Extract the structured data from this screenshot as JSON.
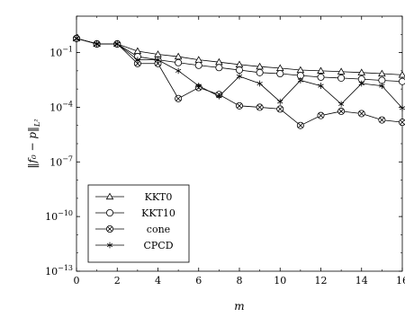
{
  "chart_data": {
    "type": "line",
    "title": "",
    "xlabel": "m",
    "ylabel": "‖f₀ − p‖",
    "ylabel_subscript": "L²",
    "y_scale": "log",
    "xlim": [
      0,
      16
    ],
    "ylim": [
      1e-13,
      10
    ],
    "x_ticks": [
      0,
      2,
      4,
      6,
      8,
      10,
      12,
      14,
      16
    ],
    "x_tick_labels": [
      "0",
      "2",
      "4",
      "6",
      "8",
      "10",
      "12",
      "14",
      "16"
    ],
    "y_ticks": [
      1e-13,
      1e-10,
      1e-07,
      0.0001,
      0.1
    ],
    "y_tick_labels": [
      {
        "base": "10",
        "exp": "−13"
      },
      {
        "base": "10",
        "exp": "−10"
      },
      {
        "base": "10",
        "exp": "−7"
      },
      {
        "base": "10",
        "exp": "−4"
      },
      {
        "base": "10",
        "exp": "−1"
      }
    ],
    "grid": false,
    "legend_position": "bottom-left",
    "x": [
      0,
      1,
      2,
      3,
      4,
      5,
      6,
      7,
      8,
      9,
      10,
      11,
      12,
      13,
      14,
      15,
      16
    ],
    "series": [
      {
        "name": "KKT0",
        "marker": "triangle",
        "values": [
          0.6,
          0.3,
          0.3,
          0.12,
          0.08,
          0.06,
          0.04,
          0.03,
          0.022,
          0.017,
          0.014,
          0.011,
          0.01,
          0.009,
          0.008,
          0.007,
          0.006
        ]
      },
      {
        "name": "KKT10",
        "marker": "circle",
        "values": [
          0.6,
          0.3,
          0.3,
          0.06,
          0.04,
          0.028,
          0.02,
          0.015,
          0.011,
          0.008,
          0.007,
          0.0055,
          0.0045,
          0.004,
          0.0035,
          0.003,
          0.0026
        ]
      },
      {
        "name": "cone",
        "marker": "circle-x",
        "values": [
          0.6,
          0.3,
          0.3,
          0.025,
          0.025,
          0.0003,
          0.0012,
          0.0005,
          0.00012,
          0.0001,
          8e-05,
          1e-05,
          3.5e-05,
          6e-05,
          4.5e-05,
          2e-05,
          1.5e-05
        ]
      },
      {
        "name": "CPCD",
        "marker": "star",
        "values": [
          0.6,
          0.3,
          0.3,
          0.04,
          0.04,
          0.01,
          0.0015,
          0.0004,
          0.005,
          0.002,
          0.0002,
          0.003,
          0.0015,
          0.00015,
          0.002,
          0.0015,
          9e-05
        ]
      }
    ]
  }
}
